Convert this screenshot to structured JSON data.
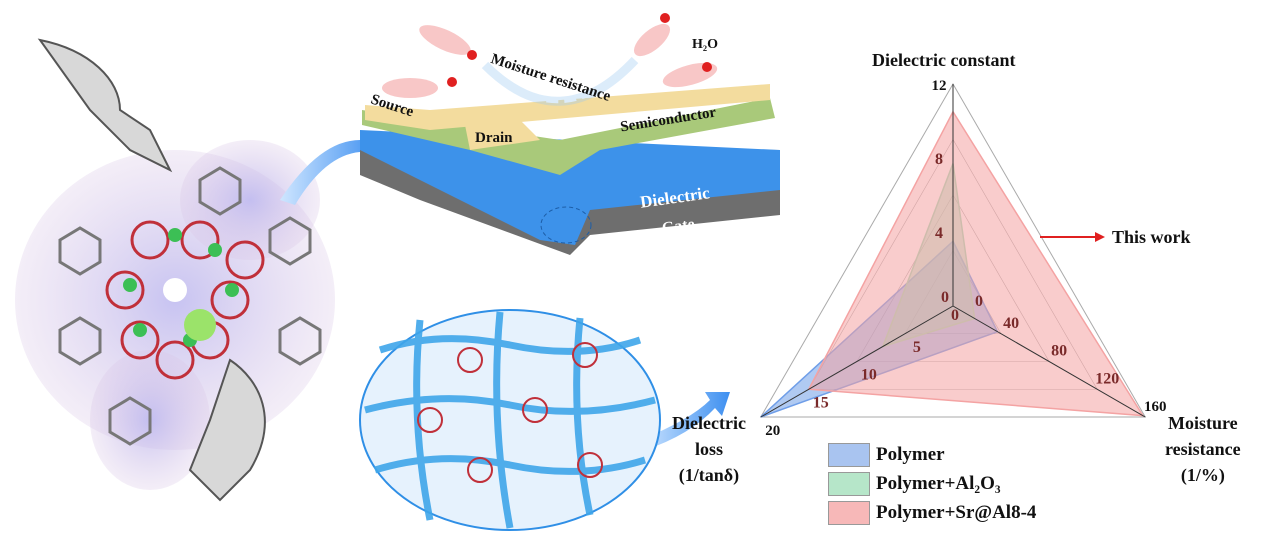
{
  "illustration": {
    "device_labels": {
      "source": "Source",
      "drain": "Drain",
      "semiconductor": "Semiconductor",
      "dielectric": "Dielectric",
      "gate": "Gate",
      "moisture": "Moisture resistance",
      "water": "H₂O"
    }
  },
  "annotation": {
    "this_work": "This work",
    "arrow_color": "#e02020"
  },
  "chart_data": {
    "type": "radar",
    "axes": [
      {
        "label": "Dielectric constant",
        "ticks": [
          "0",
          "4",
          "8",
          "12"
        ],
        "range": [
          0,
          12
        ]
      },
      {
        "label_lines": [
          "Dielectric",
          "loss",
          "(1/tanδ)"
        ],
        "ticks": [
          "0",
          "5",
          "10",
          "15",
          "20"
        ],
        "range": [
          0,
          20
        ]
      },
      {
        "label_lines": [
          "Moisture",
          "resistance",
          "(1/%)"
        ],
        "ticks": [
          "0",
          "40",
          "80",
          "120",
          "160"
        ],
        "range": [
          0,
          160
        ]
      }
    ],
    "series": [
      {
        "name": "Polymer",
        "values": [
          3.5,
          20,
          37
        ],
        "color": "#6f9ee8"
      },
      {
        "name": "Polymer+Al₂O₃",
        "values": [
          7.7,
          7.3,
          18
        ],
        "color": "#9fdcb8"
      },
      {
        "name": "Polymer+Sr@Al8-4",
        "values": [
          10.5,
          15,
          158
        ],
        "color": "#f4a3a3"
      }
    ],
    "grid": true,
    "legend_position": "bottom"
  }
}
